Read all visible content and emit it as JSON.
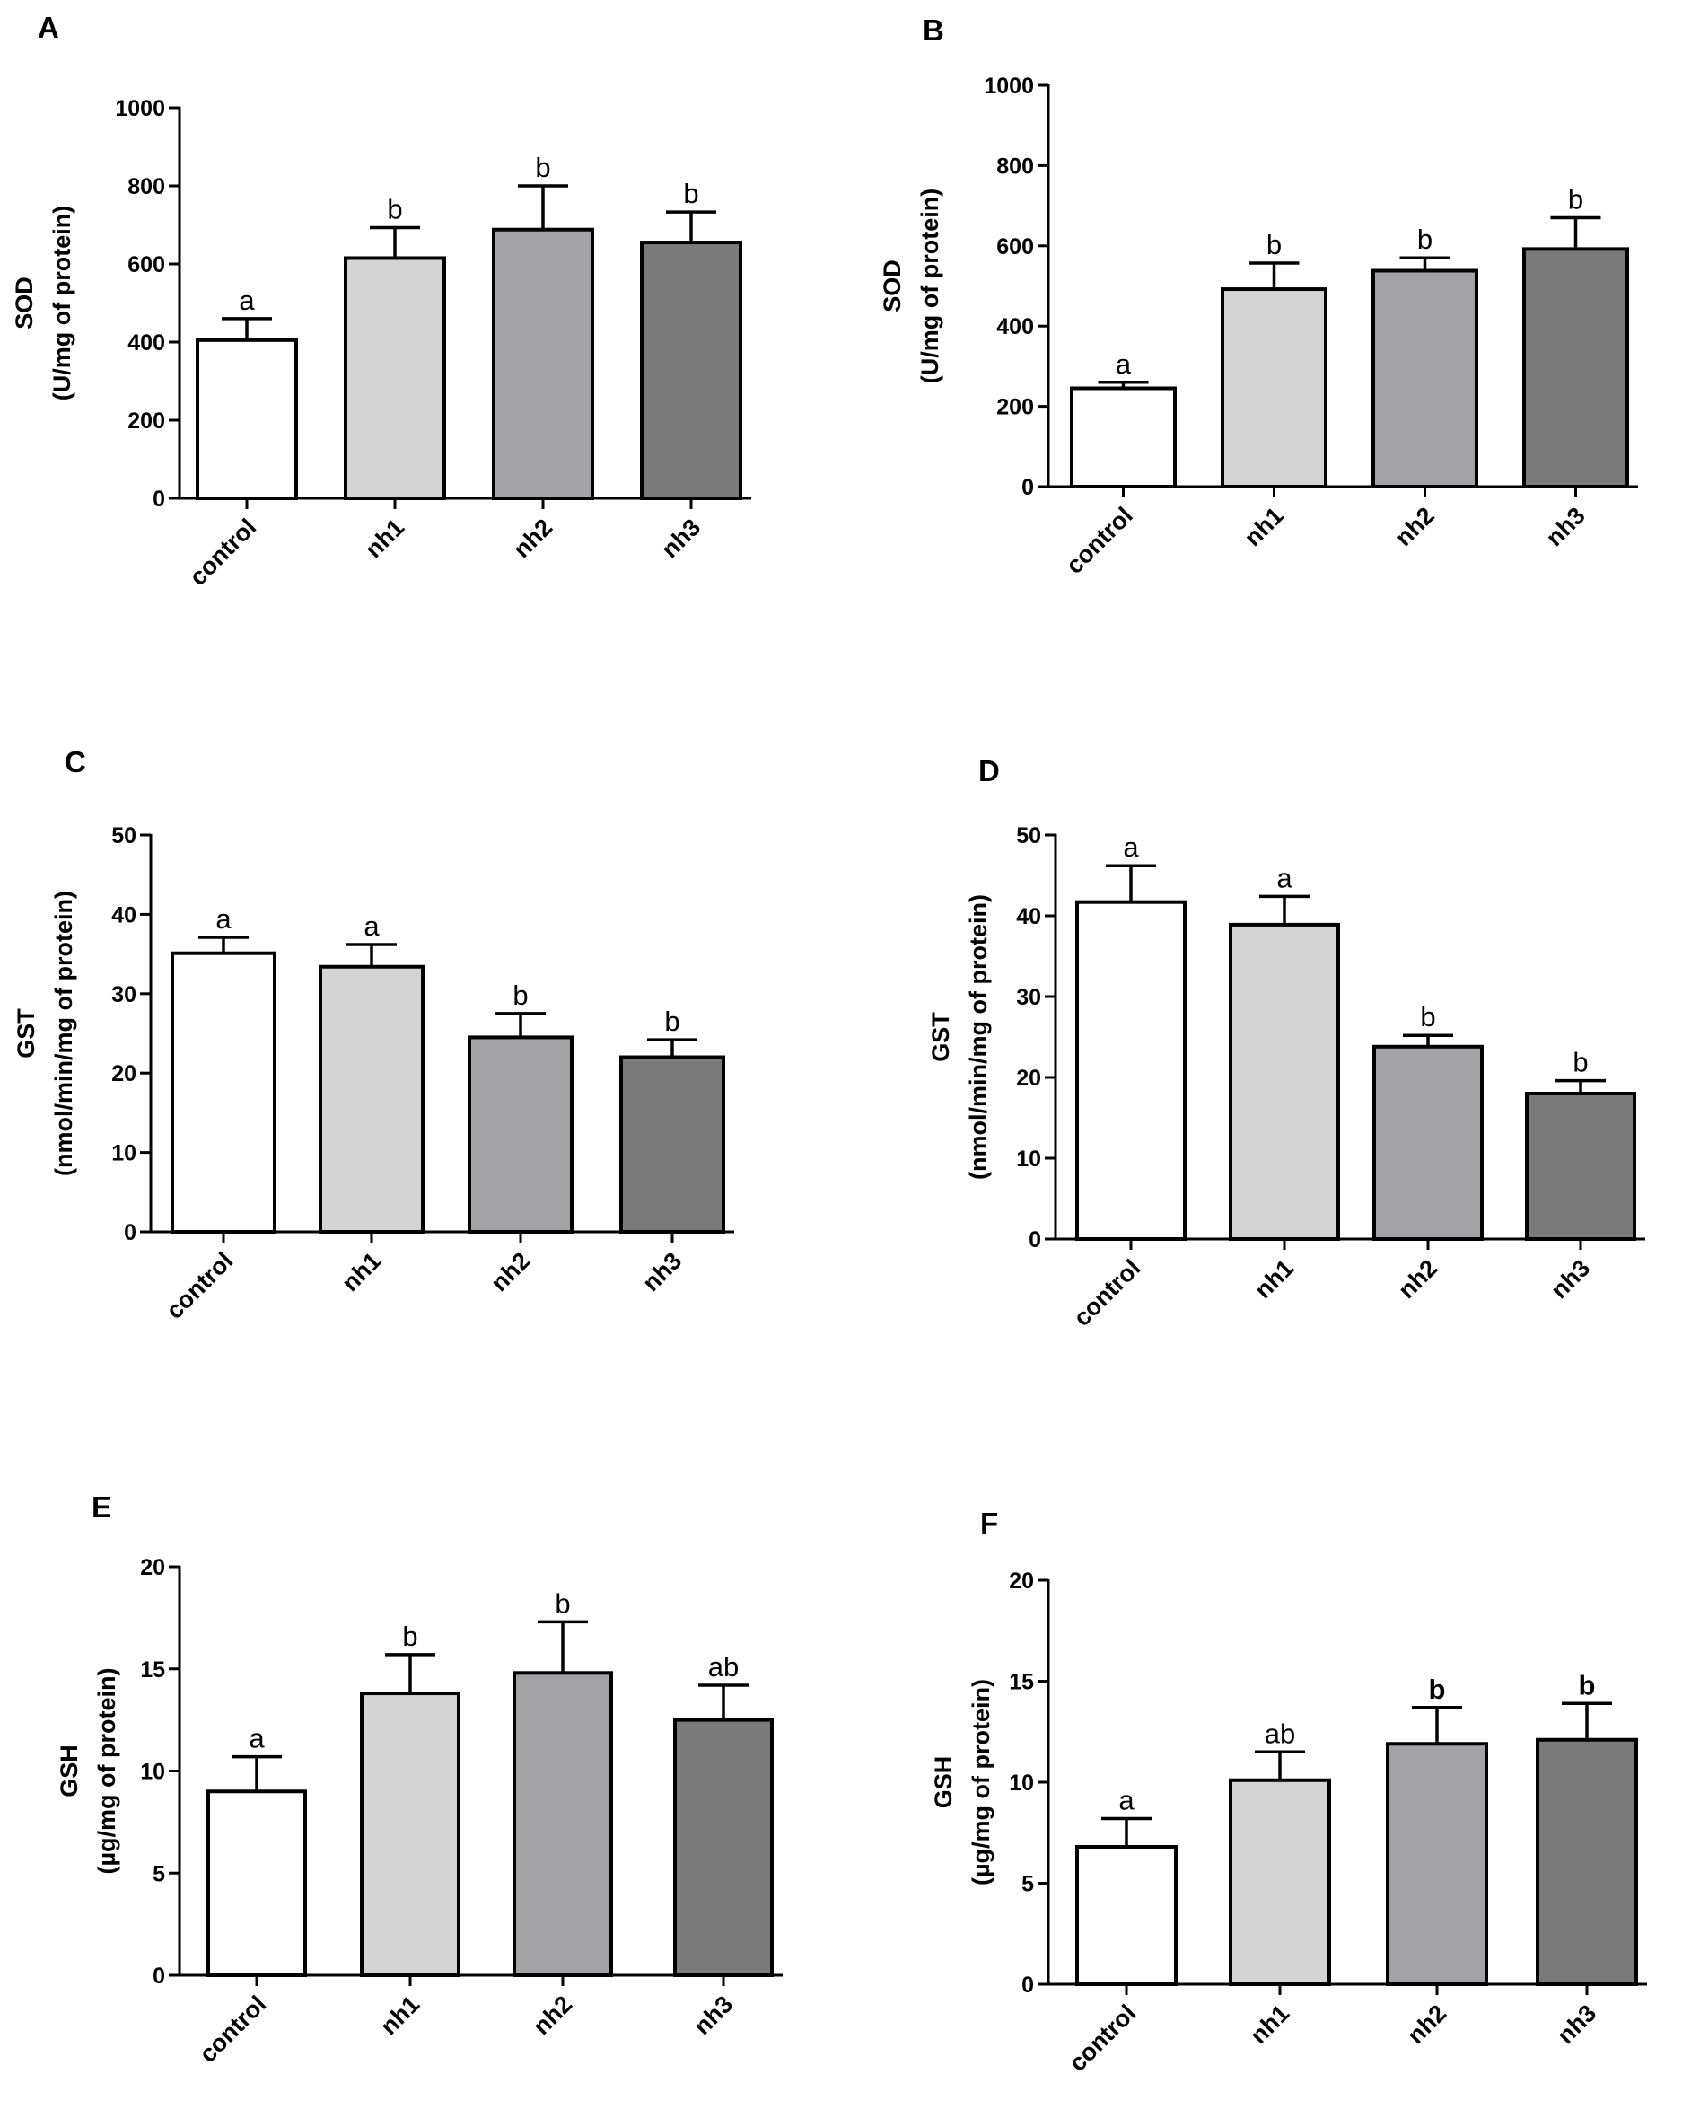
{
  "figure": {
    "categories": [
      "control",
      "nh1",
      "nh2",
      "nh3"
    ],
    "bar_colors": [
      "#ffffff",
      "#d4d4d4",
      "#a3a3a5",
      "#7a7a7a"
    ],
    "axis_color": "#000000"
  },
  "chart_data": [
    {
      "panel": "A",
      "type": "bar",
      "ylabel_line1": "SOD",
      "ylabel_line2": "(U/mg of protein)",
      "ylim": [
        0,
        1000
      ],
      "yticks": [
        0,
        200,
        400,
        600,
        800,
        1000
      ],
      "categories": [
        "control",
        "nh1",
        "nh2",
        "nh3"
      ],
      "values": [
        405,
        615,
        688,
        655
      ],
      "errors": [
        55,
        78,
        112,
        78
      ],
      "significance": [
        "a",
        "b",
        "b",
        "b"
      ],
      "significance_bold": [
        false,
        false,
        false,
        false
      ]
    },
    {
      "panel": "B",
      "type": "bar",
      "ylabel_line1": "SOD",
      "ylabel_line2": "(U/mg of protein)",
      "ylim": [
        0,
        1000
      ],
      "yticks": [
        0,
        200,
        400,
        600,
        800,
        1000
      ],
      "categories": [
        "control",
        "nh1",
        "nh2",
        "nh3"
      ],
      "values": [
        245,
        492,
        538,
        592
      ],
      "errors": [
        15,
        65,
        32,
        78
      ],
      "significance": [
        "a",
        "b",
        "b",
        "b"
      ],
      "significance_bold": [
        false,
        false,
        false,
        false
      ]
    },
    {
      "panel": "C",
      "type": "bar",
      "ylabel_line1": "GST",
      "ylabel_line2": "(nmol/min/mg of protein)",
      "ylim": [
        0,
        50
      ],
      "yticks": [
        0,
        10,
        20,
        30,
        40,
        50
      ],
      "categories": [
        "control",
        "nh1",
        "nh2",
        "nh3"
      ],
      "values": [
        35.1,
        33.4,
        24.5,
        22.0
      ],
      "errors": [
        2.0,
        2.8,
        3.0,
        2.2
      ],
      "significance": [
        "a",
        "a",
        "b",
        "b"
      ],
      "significance_bold": [
        false,
        false,
        false,
        false
      ]
    },
    {
      "panel": "D",
      "type": "bar",
      "ylabel_line1": "GST",
      "ylabel_line2": "(nmol/min/mg of protein)",
      "ylim": [
        0,
        50
      ],
      "yticks": [
        0,
        10,
        20,
        30,
        40,
        50
      ],
      "categories": [
        "control",
        "nh1",
        "nh2",
        "nh3"
      ],
      "values": [
        41.7,
        38.9,
        23.8,
        18.0
      ],
      "errors": [
        4.5,
        3.5,
        1.4,
        1.6
      ],
      "significance": [
        "a",
        "a",
        "b",
        "b"
      ],
      "significance_bold": [
        false,
        false,
        false,
        false
      ]
    },
    {
      "panel": "E",
      "type": "bar",
      "ylabel_line1": "GSH",
      "ylabel_line2": "(µg/mg of protein)",
      "ylim": [
        0,
        20
      ],
      "yticks": [
        0,
        5,
        10,
        15,
        20
      ],
      "categories": [
        "control",
        "nh1",
        "nh2",
        "nh3"
      ],
      "values": [
        9.0,
        13.8,
        14.8,
        12.5
      ],
      "errors": [
        1.7,
        1.9,
        2.5,
        1.7
      ],
      "significance": [
        "a",
        "b",
        "b",
        "ab"
      ],
      "significance_bold": [
        false,
        false,
        false,
        false
      ]
    },
    {
      "panel": "F",
      "type": "bar",
      "ylabel_line1": "GSH",
      "ylabel_line2": "(µg/mg of protein)",
      "ylim": [
        0,
        20
      ],
      "yticks": [
        0,
        5,
        10,
        15,
        20
      ],
      "categories": [
        "control",
        "nh1",
        "nh2",
        "nh3"
      ],
      "values": [
        6.8,
        10.1,
        11.9,
        12.1
      ],
      "errors": [
        1.4,
        1.4,
        1.8,
        1.8
      ],
      "significance": [
        "a",
        "ab",
        "b",
        "b"
      ],
      "significance_bold": [
        false,
        false,
        true,
        true
      ]
    }
  ]
}
